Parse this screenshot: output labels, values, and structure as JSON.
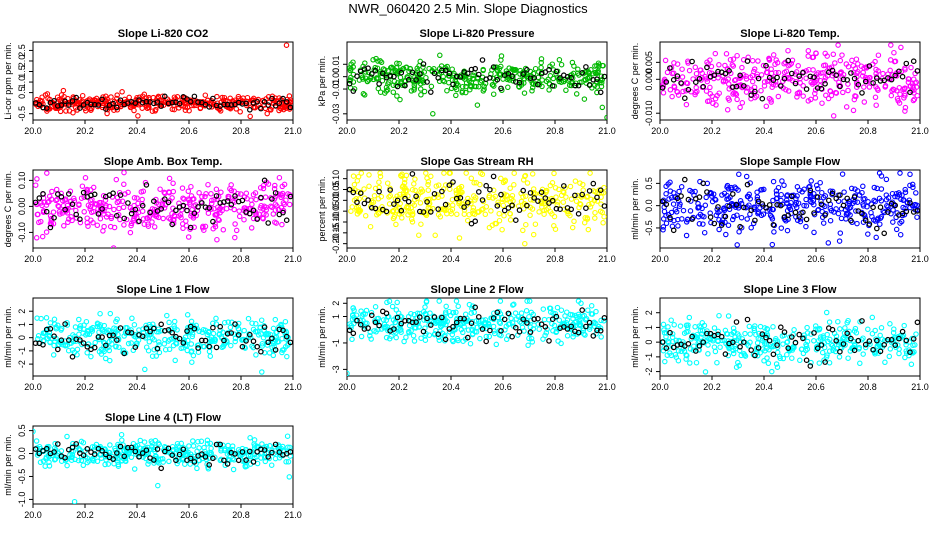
{
  "figure_title": "NWR_060420  2.5 Min. Slope Diagnostics",
  "colors": {
    "red": "#ff0000",
    "green": "#00b800",
    "magenta": "#ff00ff",
    "yellow": "#ffff00",
    "blue": "#0000ff",
    "cyan": "#00ffff",
    "black": "#000000"
  },
  "chart_data": [
    {
      "id": "co2",
      "type": "scatter",
      "title": "Slope Li-820 CO2",
      "ylabel": "Li-cor ppm per min.",
      "xlim": [
        20.0,
        21.0
      ],
      "ylim": [
        -0.8,
        2.9
      ],
      "xticks": [
        "20.0",
        "20.2",
        "20.4",
        "20.6",
        "20.8",
        "21.0"
      ],
      "yticks": [
        -0.5,
        0.5,
        1.0,
        1.5,
        2.0,
        2.5
      ],
      "yticklabels": [
        "-0.5",
        "0.5",
        "1.0",
        "1.5",
        "2.0",
        "2.5"
      ],
      "color": "red",
      "center": 0.0,
      "spread": 0.18,
      "outliers": [
        [
          20.975,
          2.75
        ]
      ]
    },
    {
      "id": "pressure",
      "type": "scatter",
      "title": "Slope Li-820 Pressure",
      "ylabel": "kPa per min.",
      "xlim": [
        20.0,
        21.0
      ],
      "ylim": [
        -0.035,
        0.028
      ],
      "xticks": [
        "20.0",
        "20.2",
        "20.4",
        "20.6",
        "20.8",
        "21.0"
      ],
      "yticks": [
        -0.03,
        -0.01,
        0.0,
        0.01
      ],
      "yticklabels": [
        "-0.03",
        "-0.01",
        "0.00",
        "0.01"
      ],
      "color": "green",
      "center": 0.0,
      "spread": 0.007,
      "outliers": [
        [
          20.33,
          -0.03
        ],
        [
          21.0,
          -0.033
        ]
      ]
    },
    {
      "id": "temp",
      "type": "scatter",
      "title": "Slope Li-820 Temp.",
      "ylabel": "degrees C per min.",
      "xlim": [
        20.0,
        21.0
      ],
      "ylim": [
        -0.012,
        0.011
      ],
      "xticks": [
        "20.0",
        "20.2",
        "20.4",
        "20.6",
        "20.8",
        "21.0"
      ],
      "yticks": [
        -0.01,
        0.0,
        0.005
      ],
      "yticklabels": [
        "-0.010",
        "0.000",
        "0.005"
      ],
      "color": "magenta",
      "center": 0.0,
      "spread": 0.004,
      "outliers": []
    },
    {
      "id": "ambtemp",
      "type": "scatter",
      "title": "Slope Amb. Box Temp.",
      "ylabel": "degrees C per min.",
      "xlim": [
        20.0,
        21.0
      ],
      "ylim": [
        -0.16,
        0.14
      ],
      "xticks": [
        "20.0",
        "20.2",
        "20.4",
        "20.6",
        "20.8",
        "21.0"
      ],
      "yticks": [
        -0.1,
        0.0,
        0.1
      ],
      "yticklabels": [
        "-0.10",
        "0.00",
        "0.10"
      ],
      "color": "magenta",
      "center": 0.0,
      "spread": 0.05,
      "outliers": [
        [
          20.31,
          -0.16
        ],
        [
          20.35,
          0.13
        ]
      ]
    },
    {
      "id": "rh",
      "type": "scatter",
      "title": "Slope Gas Stream RH",
      "ylabel": "percent per min.",
      "xlim": [
        20.0,
        21.0
      ],
      "ylim": [
        -0.22,
        0.14
      ],
      "xticks": [
        "20.0",
        "20.2",
        "20.4",
        "20.6",
        "20.8",
        "21.0"
      ],
      "yticks": [
        -0.2,
        -0.15,
        -0.1,
        -0.05,
        0.0,
        0.05,
        0.1
      ],
      "yticklabels": [
        "-0.20",
        "-0.15",
        "-0.10",
        "-0.05",
        "0.00",
        "0.05",
        "0.10"
      ],
      "color": "yellow",
      "center": 0.0,
      "spread": 0.06,
      "outliers": []
    },
    {
      "id": "sampleflow",
      "type": "scatter",
      "title": "Slope Sample Flow",
      "ylabel": "ml/min per min.",
      "xlim": [
        20.0,
        21.0
      ],
      "ylim": [
        -0.95,
        0.8
      ],
      "xticks": [
        "20.0",
        "20.2",
        "20.4",
        "20.6",
        "20.8",
        "21.0"
      ],
      "yticks": [
        -0.5,
        0.0,
        0.5
      ],
      "yticklabels": [
        "-0.5",
        "0.0",
        "0.5"
      ],
      "color": "blue",
      "center": 0.0,
      "spread": 0.3,
      "outliers": []
    },
    {
      "id": "line1",
      "type": "scatter",
      "title": "Slope Line 1 Flow",
      "ylabel": "ml/min per min.",
      "xlim": [
        20.0,
        21.0
      ],
      "ylim": [
        -2.9,
        3.0
      ],
      "xticks": [
        "20.0",
        "20.2",
        "20.4",
        "20.6",
        "20.8",
        "21.0"
      ],
      "yticks": [
        -2,
        -1,
        0,
        1,
        2
      ],
      "yticklabels": [
        "-2",
        "-1",
        "0",
        "1",
        "2"
      ],
      "color": "cyan",
      "center": 0.0,
      "spread": 0.75,
      "outliers": [
        [
          20.43,
          -2.4
        ],
        [
          20.88,
          -2.6
        ]
      ]
    },
    {
      "id": "line2",
      "type": "scatter",
      "title": "Slope Line 2 Flow",
      "ylabel": "ml/min per min.",
      "xlim": [
        20.0,
        21.0
      ],
      "ylim": [
        -3.5,
        2.4
      ],
      "xticks": [
        "20.0",
        "20.2",
        "20.4",
        "20.6",
        "20.8",
        "21.0"
      ],
      "yticks": [
        -3,
        -1,
        1,
        2
      ],
      "yticklabels": [
        "-3",
        "-1",
        "1",
        "2"
      ],
      "color": "cyan",
      "center": 0.5,
      "spread": 0.75,
      "outliers": [
        [
          20.0,
          -3.3
        ]
      ]
    },
    {
      "id": "line3",
      "type": "scatter",
      "title": "Slope Line 3 Flow",
      "ylabel": "ml/min per min.",
      "xlim": [
        20.0,
        21.0
      ],
      "ylim": [
        -2.3,
        3.0
      ],
      "xticks": [
        "20.0",
        "20.2",
        "20.4",
        "20.6",
        "20.8",
        "21.0"
      ],
      "yticks": [
        -2,
        -1,
        0,
        1,
        2
      ],
      "yticklabels": [
        "-2",
        "-1",
        "0",
        "1",
        "2"
      ],
      "color": "cyan",
      "center": 0.0,
      "spread": 0.7,
      "outliers": [
        [
          20.43,
          -2.0
        ]
      ]
    },
    {
      "id": "line4",
      "type": "scatter",
      "title": "Slope Line 4 (LT) Flow",
      "ylabel": "ml/min per min.",
      "xlim": [
        20.0,
        21.0
      ],
      "ylim": [
        -1.1,
        0.6
      ],
      "xticks": [
        "20.0",
        "20.2",
        "20.4",
        "20.6",
        "20.8",
        "21.0"
      ],
      "yticks": [
        -1.0,
        -0.5,
        0.0,
        0.5
      ],
      "yticklabels": [
        "-1.0",
        "-0.5",
        "0.0",
        "0.5"
      ],
      "color": "cyan",
      "center": 0.0,
      "spread": 0.14,
      "outliers": [
        [
          20.16,
          -1.05
        ],
        [
          20.48,
          -0.7
        ],
        [
          20.0,
          0.48
        ]
      ]
    }
  ]
}
